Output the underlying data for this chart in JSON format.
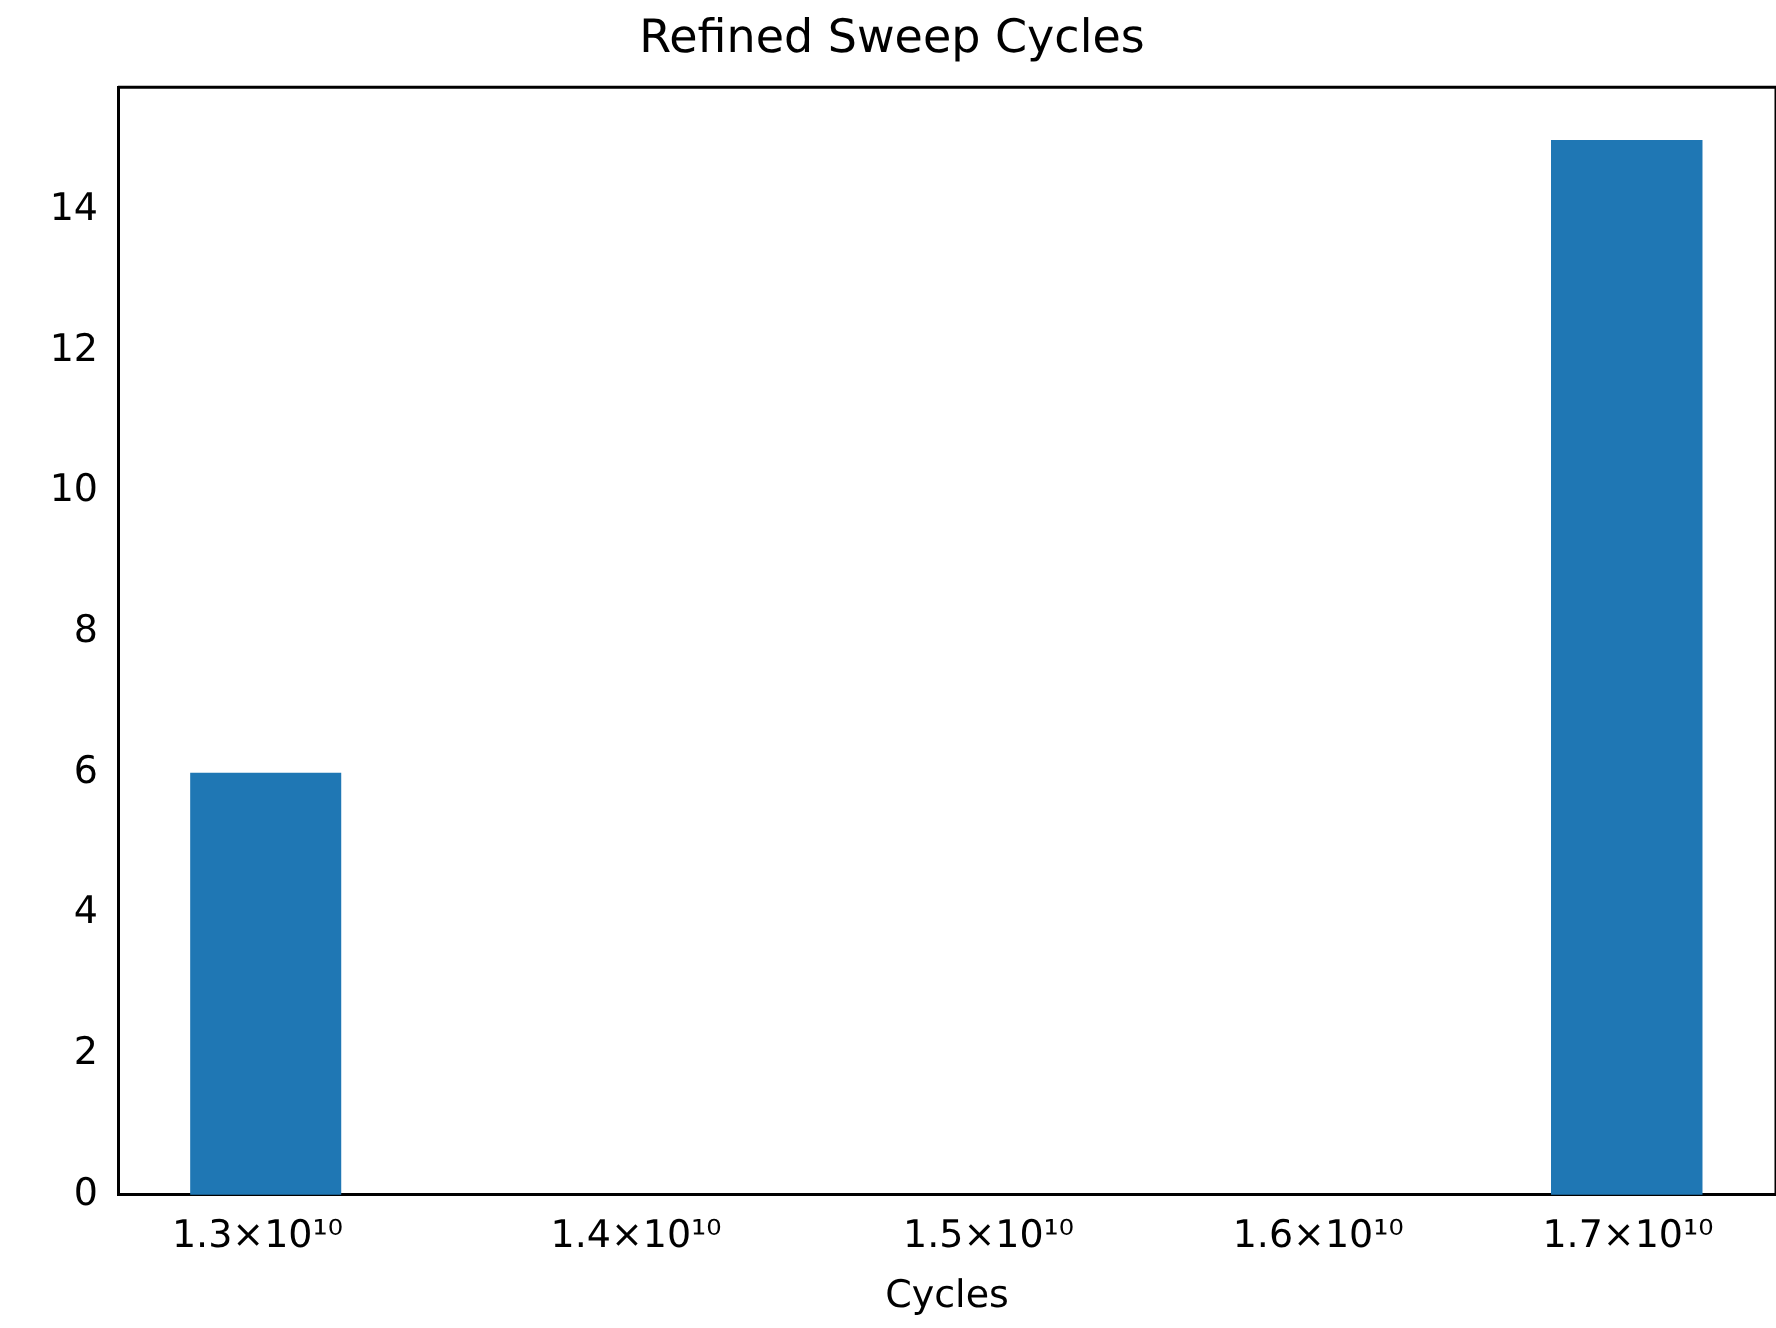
{
  "chart_data": {
    "type": "histogram",
    "title": "Refined Sweep Cycles",
    "xlabel": "Cycles",
    "bins": [
      12830000000.0,
      13215000000.0,
      16746000000.0,
      17250000000.0
    ],
    "values": [
      6,
      0,
      15
    ],
    "color": "#1f77b4",
    "log": "x",
    "xlim": [
      12650000000.0,
      17500000000.0
    ],
    "xticks": [
      {
        "value": 13000000000.0,
        "label": "1.3×10¹⁰"
      },
      {
        "value": 14000000000.0,
        "label": "1.4×10¹⁰"
      },
      {
        "value": 15000000000.0,
        "label": "1.5×10¹⁰"
      },
      {
        "value": 16000000000.0,
        "label": "1.6×10¹⁰"
      },
      {
        "value": 17000000000.0,
        "label": "1.7×10¹⁰"
      }
    ],
    "ylim": [
      0,
      15.75
    ],
    "yticks": [
      0,
      2,
      4,
      6,
      8,
      10,
      12,
      14
    ],
    "grid": false
  }
}
